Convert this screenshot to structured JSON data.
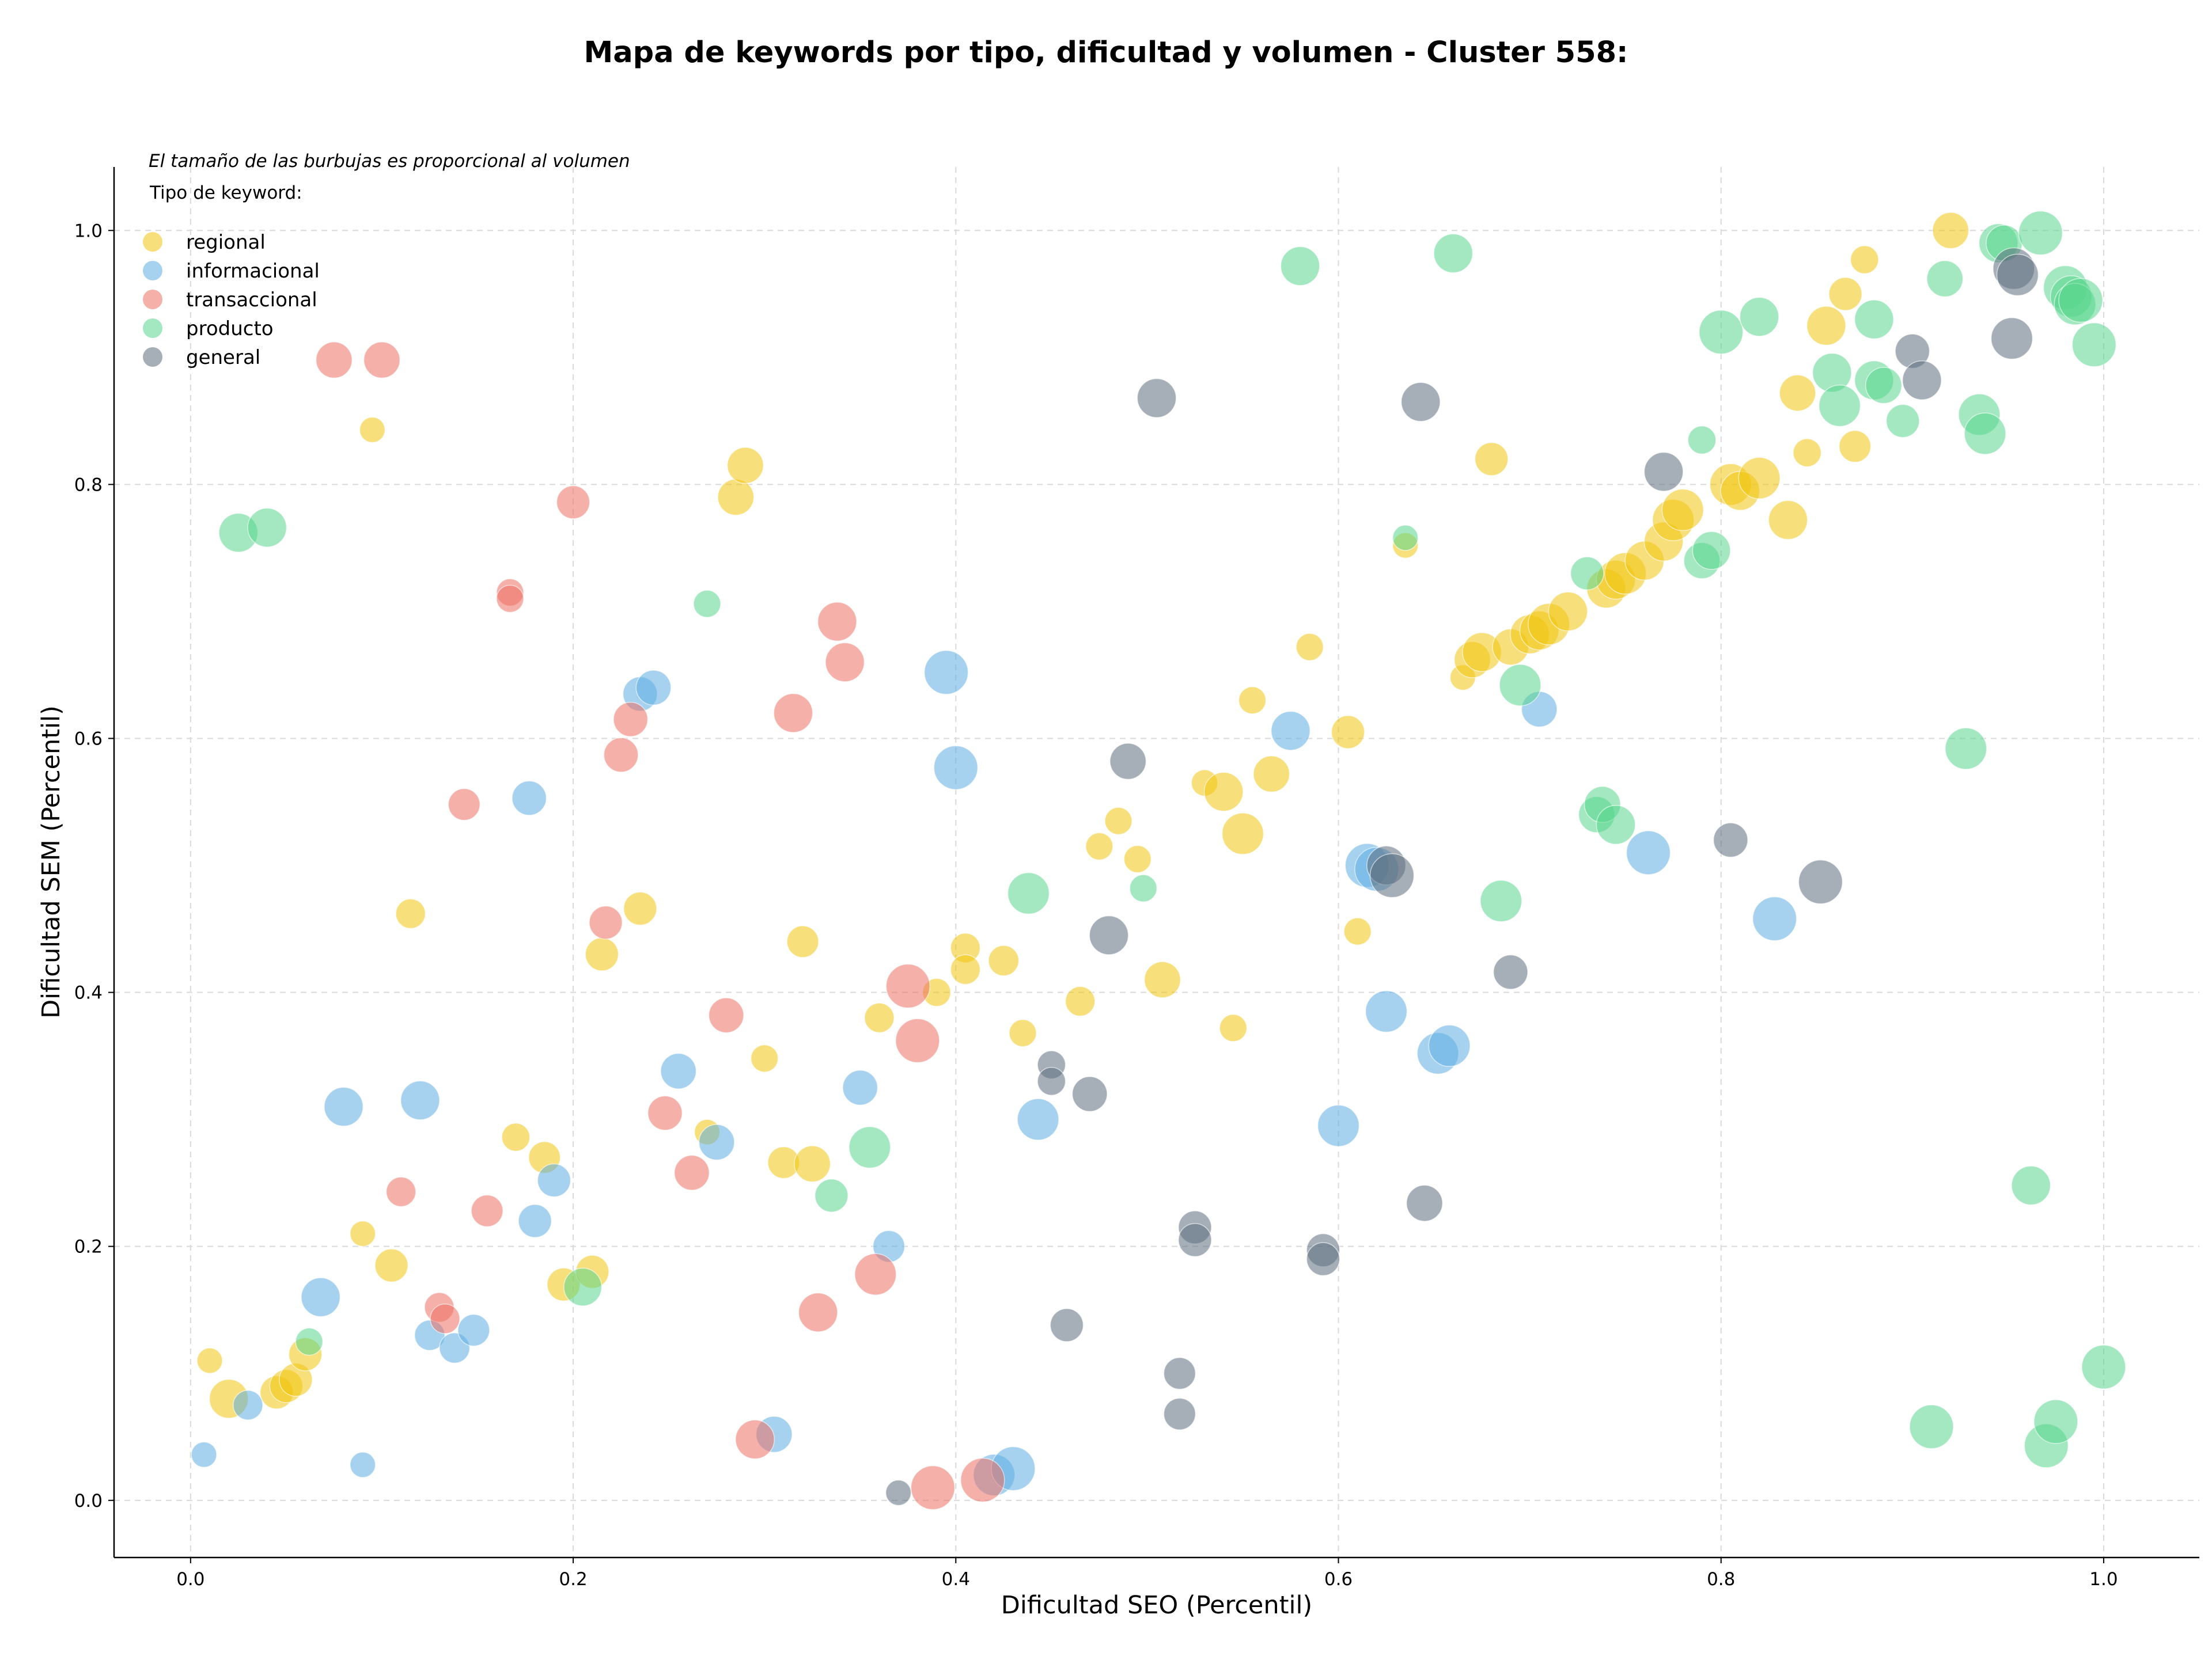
{
  "chart_data": {
    "type": "scatter",
    "title": "Mapa de keywords por tipo, dificultad y volumen - Cluster 558:",
    "xlabel": "Dificultad SEO (Percentil)",
    "ylabel": "Dificultad SEM (Percentil)",
    "xlim": [
      -0.04,
      1.05
    ],
    "ylim": [
      -0.045,
      1.05
    ],
    "xticks": [
      0.0,
      0.2,
      0.4,
      0.6,
      0.8,
      1.0
    ],
    "yticks": [
      0.0,
      0.2,
      0.4,
      0.6,
      0.8,
      1.0
    ],
    "xtick_labels": [
      "0.0",
      "0.2",
      "0.4",
      "0.6",
      "0.8",
      "1.0"
    ],
    "ytick_labels": [
      "0.0",
      "0.2",
      "0.4",
      "0.6",
      "0.8",
      "1.0"
    ],
    "grid": true,
    "size_note": "El tamaño de las burbujas es proporcional al volumen",
    "legend_title": "Tipo de keyword:",
    "legend_position": "top-left",
    "series": [
      {
        "name": "regional",
        "color": "#f1c40f",
        "points": [
          [
            0.01,
            0.11,
            1
          ],
          [
            0.02,
            0.08,
            3
          ],
          [
            0.045,
            0.085,
            2
          ],
          [
            0.05,
            0.09,
            2
          ],
          [
            0.055,
            0.095,
            2
          ],
          [
            0.06,
            0.115,
            2
          ],
          [
            0.09,
            0.21,
            1
          ],
          [
            0.095,
            0.843,
            1
          ],
          [
            0.105,
            0.185,
            2
          ],
          [
            0.115,
            0.462,
            1.5
          ],
          [
            0.17,
            0.286,
            1.3
          ],
          [
            0.185,
            0.27,
            1.8
          ],
          [
            0.195,
            0.17,
            2
          ],
          [
            0.21,
            0.18,
            2
          ],
          [
            0.215,
            0.43,
            2
          ],
          [
            0.235,
            0.466,
            2
          ],
          [
            0.27,
            0.29,
            1
          ],
          [
            0.285,
            0.79,
            2.5
          ],
          [
            0.29,
            0.815,
            2.5
          ],
          [
            0.3,
            0.348,
            1.2
          ],
          [
            0.31,
            0.266,
            1.8
          ],
          [
            0.32,
            0.44,
            1.8
          ],
          [
            0.325,
            0.265,
            2.5
          ],
          [
            0.36,
            0.38,
            1.5
          ],
          [
            0.39,
            0.4,
            1.3
          ],
          [
            0.405,
            0.435,
            1.5
          ],
          [
            0.405,
            0.418,
            1.5
          ],
          [
            0.425,
            0.425,
            1.6
          ],
          [
            0.435,
            0.368,
            1.2
          ],
          [
            0.465,
            0.393,
            1.5
          ],
          [
            0.475,
            0.515,
            1.2
          ],
          [
            0.485,
            0.535,
            1.2
          ],
          [
            0.495,
            0.505,
            1.2
          ],
          [
            0.508,
            0.41,
            2.5
          ],
          [
            0.53,
            0.565,
            1.1
          ],
          [
            0.54,
            0.558,
            3
          ],
          [
            0.545,
            0.372,
            1.2
          ],
          [
            0.55,
            0.525,
            3.5
          ],
          [
            0.555,
            0.63,
            1.2
          ],
          [
            0.565,
            0.572,
            2.5
          ],
          [
            0.585,
            0.672,
            1.2
          ],
          [
            0.605,
            0.605,
            2
          ],
          [
            0.61,
            0.448,
            1.2
          ],
          [
            0.635,
            0.752,
            1
          ],
          [
            0.665,
            0.648,
            1
          ],
          [
            0.67,
            0.662,
            2.5
          ],
          [
            0.675,
            0.668,
            3
          ],
          [
            0.68,
            0.82,
            2
          ],
          [
            0.69,
            0.672,
            2.5
          ],
          [
            0.7,
            0.682,
            3
          ],
          [
            0.705,
            0.685,
            3
          ],
          [
            0.71,
            0.69,
            3.5
          ],
          [
            0.72,
            0.7,
            3
          ],
          [
            0.74,
            0.718,
            3
          ],
          [
            0.745,
            0.725,
            3
          ],
          [
            0.75,
            0.73,
            3.5
          ],
          [
            0.76,
            0.74,
            3
          ],
          [
            0.77,
            0.755,
            3
          ],
          [
            0.775,
            0.772,
            3.5
          ],
          [
            0.78,
            0.78,
            3.5
          ],
          [
            0.805,
            0.8,
            3.5
          ],
          [
            0.81,
            0.795,
            3
          ],
          [
            0.82,
            0.805,
            3.5
          ],
          [
            0.835,
            0.772,
            3
          ],
          [
            0.84,
            0.872,
            2.5
          ],
          [
            0.845,
            0.825,
            1.3
          ],
          [
            0.855,
            0.925,
            3
          ],
          [
            0.865,
            0.95,
            2
          ],
          [
            0.87,
            0.83,
            1.8
          ],
          [
            0.875,
            0.977,
            1.3
          ],
          [
            0.92,
            1.0,
            2.5
          ]
        ]
      },
      {
        "name": "informacional",
        "color": "#5dade2",
        "points": [
          [
            0.007,
            0.036,
            1
          ],
          [
            0.03,
            0.075,
            1.5
          ],
          [
            0.068,
            0.16,
            3
          ],
          [
            0.08,
            0.31,
            3
          ],
          [
            0.09,
            0.028,
            1
          ],
          [
            0.12,
            0.315,
            3
          ],
          [
            0.125,
            0.13,
            1.6
          ],
          [
            0.138,
            0.12,
            1.6
          ],
          [
            0.148,
            0.134,
            1.8
          ],
          [
            0.177,
            0.553,
            2.2
          ],
          [
            0.18,
            0.22,
            2
          ],
          [
            0.19,
            0.252,
            2
          ],
          [
            0.235,
            0.635,
            2.2
          ],
          [
            0.242,
            0.64,
            2.3
          ],
          [
            0.255,
            0.338,
            2.4
          ],
          [
            0.275,
            0.282,
            2.4
          ],
          [
            0.305,
            0.052,
            2.5
          ],
          [
            0.35,
            0.325,
            2.3
          ],
          [
            0.365,
            0.2,
            1.8
          ],
          [
            0.395,
            0.652,
            4
          ],
          [
            0.4,
            0.577,
            4
          ],
          [
            0.42,
            0.02,
            3.5
          ],
          [
            0.43,
            0.025,
            4
          ],
          [
            0.443,
            0.3,
            3.5
          ],
          [
            0.6,
            0.295,
            3.5
          ],
          [
            0.615,
            0.5,
            4
          ],
          [
            0.62,
            0.497,
            4
          ],
          [
            0.625,
            0.385,
            3.5
          ],
          [
            0.652,
            0.352,
            3.5
          ],
          [
            0.658,
            0.358,
            3.5
          ],
          [
            0.575,
            0.606,
            3
          ],
          [
            0.705,
            0.623,
            2.4
          ],
          [
            0.762,
            0.51,
            4
          ],
          [
            0.828,
            0.458,
            4
          ]
        ]
      },
      {
        "name": "transaccional",
        "color": "#ec7063",
        "points": [
          [
            0.075,
            0.898,
            2.5
          ],
          [
            0.1,
            0.898,
            2.5
          ],
          [
            0.11,
            0.243,
            1.5
          ],
          [
            0.13,
            0.152,
            1.5
          ],
          [
            0.133,
            0.143,
            1.5
          ],
          [
            0.143,
            0.548,
            1.8
          ],
          [
            0.155,
            0.228,
            1.8
          ],
          [
            0.167,
            0.715,
            1.2
          ],
          [
            0.167,
            0.71,
            1.2
          ],
          [
            0.2,
            0.786,
            2
          ],
          [
            0.217,
            0.455,
            2
          ],
          [
            0.225,
            0.587,
            2.2
          ],
          [
            0.23,
            0.615,
            2.2
          ],
          [
            0.248,
            0.305,
            2.2
          ],
          [
            0.262,
            0.258,
            2.3
          ],
          [
            0.28,
            0.382,
            2.3
          ],
          [
            0.295,
            0.048,
            3
          ],
          [
            0.315,
            0.62,
            3
          ],
          [
            0.328,
            0.148,
            3
          ],
          [
            0.338,
            0.692,
            3
          ],
          [
            0.342,
            0.66,
            3
          ],
          [
            0.358,
            0.178,
            3.5
          ],
          [
            0.375,
            0.405,
            4
          ],
          [
            0.38,
            0.362,
            4
          ],
          [
            0.388,
            0.01,
            4
          ],
          [
            0.414,
            0.016,
            4
          ]
        ]
      },
      {
        "name": "producto",
        "color": "#58d68d",
        "points": [
          [
            0.025,
            0.762,
            3
          ],
          [
            0.04,
            0.766,
            3
          ],
          [
            0.062,
            0.125,
            1.2
          ],
          [
            0.205,
            0.168,
            2.8
          ],
          [
            0.27,
            0.706,
            1.2
          ],
          [
            0.335,
            0.24,
            2
          ],
          [
            0.355,
            0.278,
            3.5
          ],
          [
            0.438,
            0.478,
            3.5
          ],
          [
            0.498,
            0.482,
            1.2
          ],
          [
            0.58,
            0.972,
            3
          ],
          [
            0.635,
            0.758,
            1
          ],
          [
            0.66,
            0.982,
            3
          ],
          [
            0.685,
            0.472,
            3.5
          ],
          [
            0.695,
            0.642,
            3.5
          ],
          [
            0.73,
            0.73,
            2
          ],
          [
            0.735,
            0.54,
            2.5
          ],
          [
            0.738,
            0.548,
            2.5
          ],
          [
            0.745,
            0.532,
            3
          ],
          [
            0.79,
            0.74,
            2.5
          ],
          [
            0.79,
            0.835,
            1.3
          ],
          [
            0.795,
            0.748,
            2.8
          ],
          [
            0.8,
            0.92,
            4
          ],
          [
            0.82,
            0.932,
            3
          ],
          [
            0.858,
            0.888,
            3
          ],
          [
            0.862,
            0.862,
            3.5
          ],
          [
            0.88,
            0.93,
            3
          ],
          [
            0.88,
            0.882,
            3
          ],
          [
            0.885,
            0.878,
            2.5
          ],
          [
            0.895,
            0.85,
            2
          ],
          [
            0.91,
            0.058,
            4
          ],
          [
            0.917,
            0.962,
            2.5
          ],
          [
            0.928,
            0.592,
            3.5
          ],
          [
            0.935,
            0.855,
            3.5
          ],
          [
            0.938,
            0.84,
            3.5
          ],
          [
            0.945,
            0.99,
            3
          ],
          [
            0.948,
            0.99,
            2.5
          ],
          [
            0.962,
            0.248,
            3
          ],
          [
            0.967,
            0.998,
            4
          ],
          [
            0.97,
            0.043,
            4
          ],
          [
            0.975,
            0.062,
            4
          ],
          [
            0.98,
            0.955,
            4
          ],
          [
            0.983,
            0.948,
            3.5
          ],
          [
            0.985,
            0.942,
            3.5
          ],
          [
            0.988,
            0.945,
            4
          ],
          [
            0.995,
            0.91,
            4
          ],
          [
            1.0,
            0.105,
            4
          ]
        ]
      },
      {
        "name": "general",
        "color": "#5d6d7e",
        "points": [
          [
            0.37,
            0.006,
            1
          ],
          [
            0.45,
            0.343,
            1.3
          ],
          [
            0.45,
            0.33,
            1.3
          ],
          [
            0.458,
            0.138,
            2
          ],
          [
            0.47,
            0.32,
            2.3
          ],
          [
            0.48,
            0.445,
            3
          ],
          [
            0.49,
            0.582,
            2.5
          ],
          [
            0.505,
            0.868,
            3
          ],
          [
            0.517,
            0.1,
            1.8
          ],
          [
            0.517,
            0.068,
            1.8
          ],
          [
            0.525,
            0.215,
            2
          ],
          [
            0.525,
            0.205,
            2
          ],
          [
            0.592,
            0.197,
            2
          ],
          [
            0.592,
            0.19,
            2
          ],
          [
            0.625,
            0.5,
            3
          ],
          [
            0.628,
            0.492,
            4
          ],
          [
            0.643,
            0.865,
            3
          ],
          [
            0.645,
            0.234,
            2.5
          ],
          [
            0.69,
            0.416,
            2.2
          ],
          [
            0.77,
            0.81,
            3
          ],
          [
            0.805,
            0.52,
            2.2
          ],
          [
            0.852,
            0.487,
            4
          ],
          [
            0.9,
            0.905,
            2.2
          ],
          [
            0.905,
            0.882,
            3
          ],
          [
            0.952,
            0.915,
            3.5
          ],
          [
            0.953,
            0.97,
            3.5
          ],
          [
            0.955,
            0.965,
            3.5
          ]
        ]
      }
    ]
  }
}
